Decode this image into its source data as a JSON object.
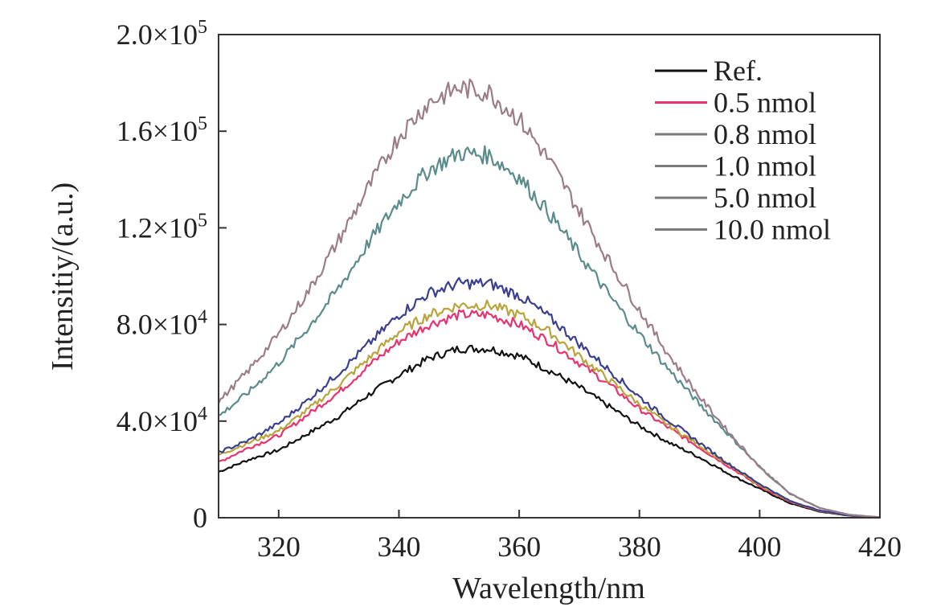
{
  "chart_data": {
    "type": "line",
    "xlabel": "Wavelength/nm",
    "ylabel": "Intensitiy/(a.u.)",
    "xlim": [
      310,
      420
    ],
    "ylim": [
      0,
      200000
    ],
    "x_ticks": [
      320,
      340,
      360,
      380,
      400,
      420
    ],
    "x_tick_labels": [
      "320",
      "340",
      "360",
      "380",
      "400",
      "420"
    ],
    "y_ticks": [
      0,
      40000,
      80000,
      120000,
      160000,
      200000
    ],
    "y_tick_labels": [
      {
        "mantissa": "0",
        "exp": ""
      },
      {
        "mantissa": "4.0×10",
        "exp": "4"
      },
      {
        "mantissa": "8.0×10",
        "exp": "4"
      },
      {
        "mantissa": "1.2×10",
        "exp": "5"
      },
      {
        "mantissa": "1.6×10",
        "exp": "5"
      },
      {
        "mantissa": "2.0×10",
        "exp": "5"
      }
    ],
    "legend_position": "top-right",
    "grid": false,
    "x": [
      310,
      315,
      320,
      325,
      330,
      335,
      340,
      345,
      350,
      355,
      360,
      365,
      370,
      375,
      380,
      385,
      390,
      395,
      400,
      405,
      410,
      415,
      420
    ],
    "series": [
      {
        "name": "Ref.",
        "color": "#111111",
        "values": [
          19000,
          24000,
          28000,
          35000,
          42000,
          51000,
          59000,
          66000,
          70000,
          70000,
          67000,
          61000,
          54000,
          46000,
          38000,
          31000,
          25000,
          18000,
          12000,
          6000,
          2500,
          800,
          200
        ]
      },
      {
        "name": "0.5 nmol",
        "color": "#e8336e",
        "values": [
          23000,
          29000,
          34000,
          43000,
          52000,
          63000,
          73000,
          80000,
          84000,
          84000,
          80000,
          73000,
          64000,
          55000,
          45000,
          37000,
          29000,
          21000,
          13000,
          6500,
          2800,
          900,
          200
        ]
      },
      {
        "name": "0.8 nmol",
        "color": "#b8a43a",
        "values": [
          26000,
          31000,
          36000,
          45000,
          55000,
          66000,
          77000,
          84000,
          88000,
          88000,
          84000,
          77000,
          67000,
          57000,
          47000,
          38000,
          30000,
          21500,
          13500,
          6800,
          2900,
          900,
          200
        ]
      },
      {
        "name": "1.0 nmol",
        "color": "#3a3f8f",
        "values": [
          27000,
          32000,
          39000,
          49000,
          60000,
          72000,
          84000,
          93000,
          97000,
          97000,
          92000,
          83000,
          72000,
          61000,
          50000,
          40000,
          31000,
          22000,
          14000,
          7000,
          3000,
          900,
          200
        ]
      },
      {
        "name": "5.0 nmol",
        "color": "#5a8c8c",
        "values": [
          42000,
          52000,
          64000,
          79000,
          95000,
          114000,
          131000,
          144000,
          151000,
          150000,
          141000,
          126000,
          109000,
          92000,
          76000,
          61000,
          47000,
          34000,
          21000,
          10000,
          4000,
          1200,
          200
        ]
      },
      {
        "name": "10.0 nmol",
        "color": "#9a7d88",
        "values": [
          48000,
          61000,
          76000,
          94000,
          115000,
          137000,
          158000,
          172000,
          178000,
          176000,
          165000,
          148000,
          127000,
          106000,
          86000,
          67000,
          50000,
          35000,
          21000,
          10000,
          4000,
          1200,
          200
        ]
      }
    ]
  },
  "legend_line_color": "#7a7a7a"
}
